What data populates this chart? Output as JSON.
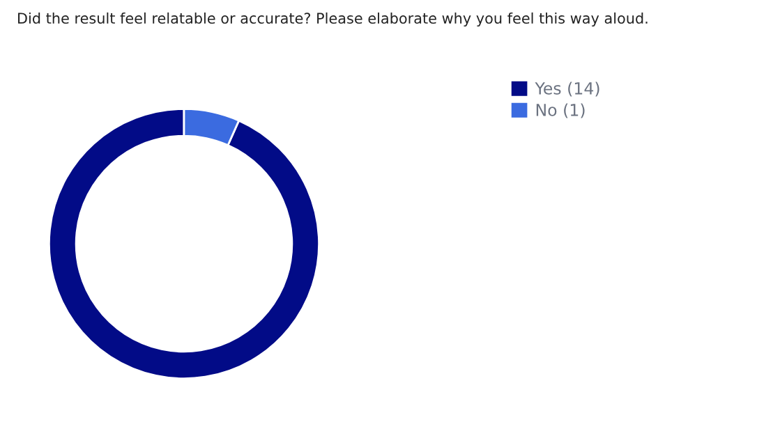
{
  "chart_data": {
    "type": "donut",
    "title": "Did the result feel relatable or accurate? Please elaborate why you feel this way aloud.",
    "categories": [
      "Yes (14)",
      "No (1)"
    ],
    "values": [
      14,
      1
    ],
    "colors": [
      "#020b87",
      "#3b6be0"
    ],
    "legend": "right"
  }
}
